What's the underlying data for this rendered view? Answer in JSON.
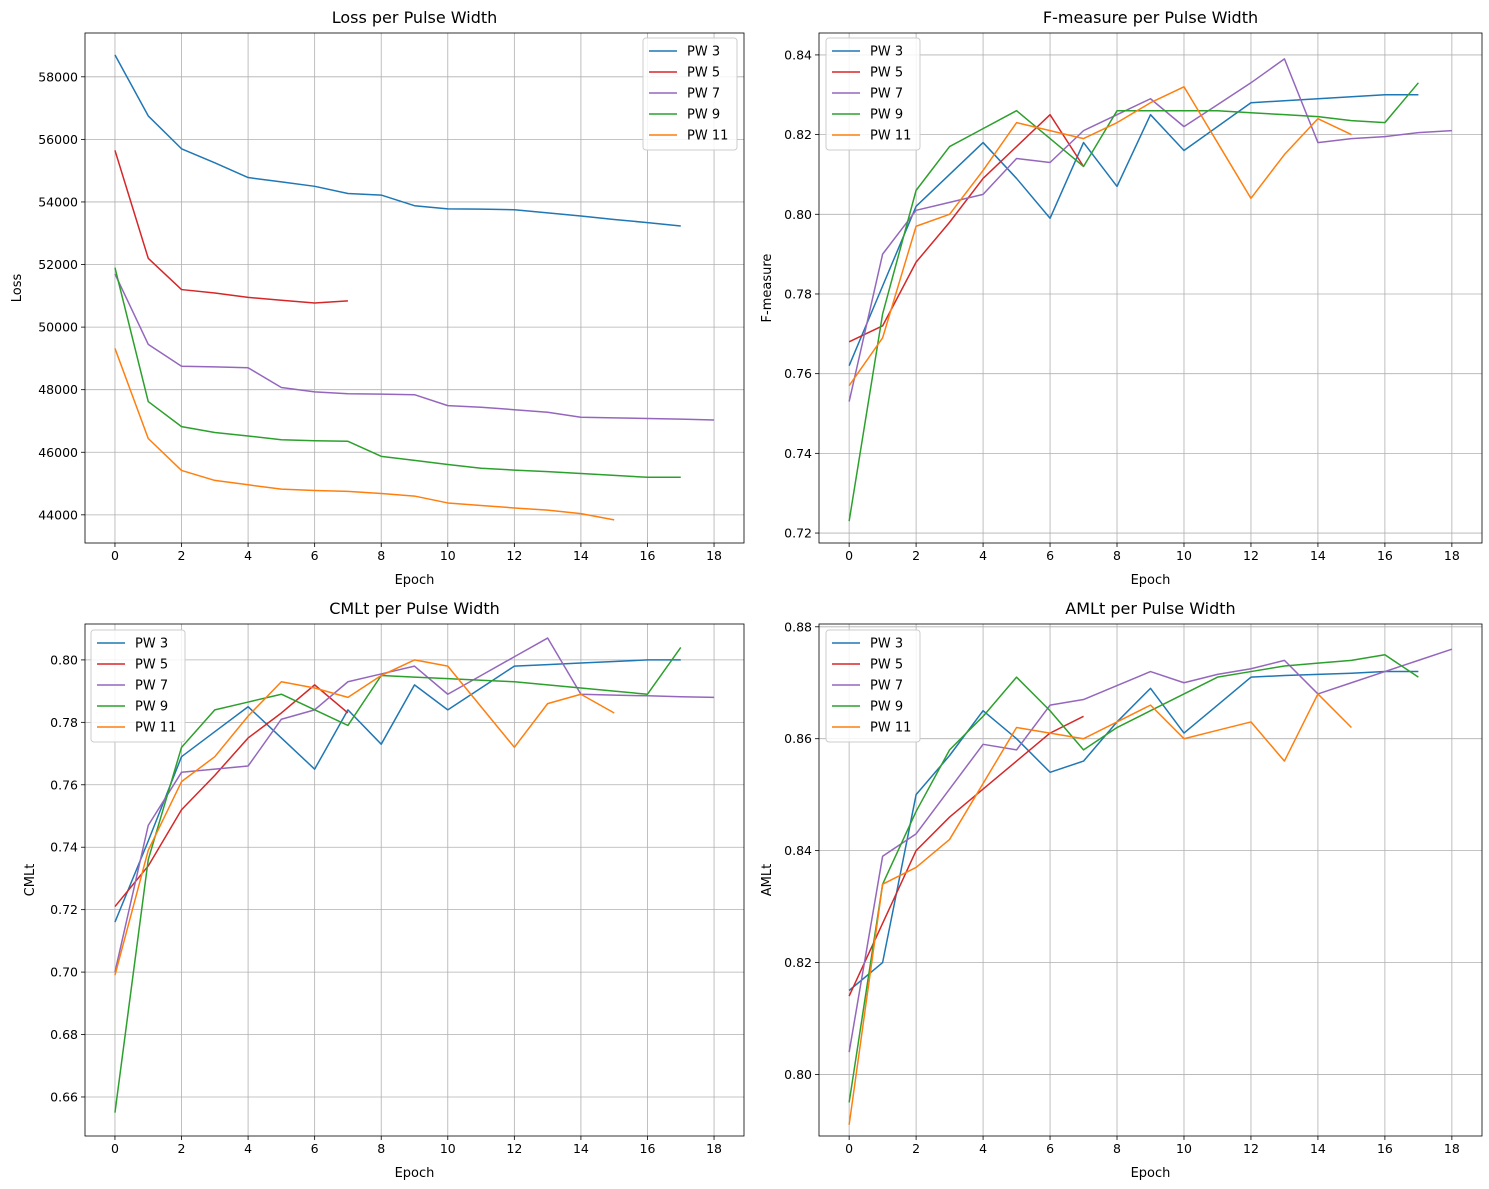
{
  "colors": {
    "PW 3": "#1f77b4",
    "PW 5": "#d62728",
    "PW 7": "#9467bd",
    "PW 9": "#2ca02c",
    "PW 11": "#ff7f0e"
  },
  "chart_data": [
    {
      "type": "line",
      "title": "Loss per Pulse Width",
      "xlabel": "Epoch",
      "ylabel": "Loss",
      "xlim": [
        -0.9,
        18.9
      ],
      "ylim": [
        43100,
        59400
      ],
      "xticks": [
        0,
        2,
        4,
        6,
        8,
        10,
        12,
        14,
        16,
        18
      ],
      "yticks": [
        44000,
        46000,
        48000,
        50000,
        52000,
        54000,
        56000,
        58000
      ],
      "grid": true,
      "legend": "top-right",
      "series": [
        {
          "name": "PW 3",
          "x": [
            0,
            1,
            2,
            3,
            4,
            5,
            6,
            7,
            8,
            9,
            10,
            11,
            12,
            13,
            14,
            15,
            16,
            17
          ],
          "values": [
            58700,
            56750,
            55700,
            55250,
            54780,
            54640,
            54500,
            54270,
            54220,
            53880,
            53780,
            53770,
            53750,
            53650,
            53550,
            53440,
            53340,
            53230
          ]
        },
        {
          "name": "PW 5",
          "x": [
            0,
            1,
            2,
            3,
            4,
            5,
            6,
            7
          ],
          "values": [
            55650,
            52200,
            51200,
            51090,
            50950,
            50860,
            50770,
            50840
          ]
        },
        {
          "name": "PW 7",
          "x": [
            0,
            1,
            2,
            3,
            4,
            5,
            6,
            7,
            8,
            9,
            10,
            11,
            12,
            13,
            14,
            15,
            16,
            17,
            18
          ],
          "values": [
            51700,
            49450,
            48750,
            48730,
            48700,
            48070,
            47930,
            47870,
            47860,
            47840,
            47490,
            47440,
            47360,
            47280,
            47120,
            47100,
            47080,
            47060,
            47030
          ]
        },
        {
          "name": "PW 9",
          "x": [
            0,
            1,
            2,
            3,
            4,
            5,
            6,
            7,
            8,
            9,
            10,
            11,
            12,
            13,
            14,
            15,
            16,
            17
          ],
          "values": [
            51900,
            47620,
            46820,
            46630,
            46520,
            46400,
            46370,
            46350,
            45870,
            45740,
            45610,
            45490,
            45430,
            45380,
            45320,
            45260,
            45200,
            45200
          ]
        },
        {
          "name": "PW 11",
          "x": [
            0,
            1,
            2,
            3,
            4,
            5,
            6,
            7,
            8,
            9,
            10,
            11,
            12,
            13,
            14,
            15
          ],
          "values": [
            49320,
            46440,
            45420,
            45100,
            44960,
            44820,
            44780,
            44750,
            44680,
            44600,
            44380,
            44300,
            44220,
            44150,
            44040,
            43840
          ]
        }
      ]
    },
    {
      "type": "line",
      "title": "F-measure per Pulse Width",
      "xlabel": "Epoch",
      "ylabel": "F-measure",
      "xlim": [
        -0.9,
        18.9
      ],
      "ylim": [
        0.7175,
        0.8455
      ],
      "xticks": [
        0,
        2,
        4,
        6,
        8,
        10,
        12,
        14,
        16,
        18
      ],
      "yticks": [
        0.72,
        0.74,
        0.76,
        0.78,
        0.8,
        0.82,
        0.84
      ],
      "ytick_labels": [
        "0.72",
        "0.74",
        "0.76",
        "0.78",
        "0.80",
        "0.82",
        "0.84"
      ],
      "grid": true,
      "legend": "top-left",
      "series": [
        {
          "name": "PW 3",
          "x": [
            0,
            1,
            2,
            3,
            4,
            5,
            6,
            7,
            8,
            9,
            10,
            11,
            12,
            13,
            14,
            15,
            16,
            17
          ],
          "values": [
            0.762,
            0.782,
            0.802,
            0.81,
            0.818,
            0.809,
            0.799,
            0.818,
            0.807,
            0.825,
            0.816,
            0.822,
            0.828,
            0.8285,
            0.829,
            0.8295,
            0.83,
            0.83
          ]
        },
        {
          "name": "PW 5",
          "x": [
            0,
            1,
            2,
            3,
            4,
            5,
            6,
            7
          ],
          "values": [
            0.768,
            0.772,
            0.788,
            0.798,
            0.809,
            0.817,
            0.825,
            0.812
          ]
        },
        {
          "name": "PW 7",
          "x": [
            0,
            1,
            2,
            3,
            4,
            5,
            6,
            7,
            8,
            9,
            10,
            11,
            12,
            13,
            14,
            15,
            16,
            17,
            18
          ],
          "values": [
            0.753,
            0.79,
            0.801,
            0.803,
            0.805,
            0.814,
            0.813,
            0.821,
            0.825,
            0.829,
            0.822,
            0.8275,
            0.833,
            0.839,
            0.818,
            0.819,
            0.8195,
            0.8205,
            0.821
          ]
        },
        {
          "name": "PW 9",
          "x": [
            0,
            1,
            2,
            3,
            4,
            5,
            6,
            7,
            8,
            9,
            10,
            11,
            12,
            13,
            14,
            15,
            16,
            17
          ],
          "values": [
            0.723,
            0.775,
            0.806,
            0.817,
            0.8215,
            0.826,
            0.819,
            0.812,
            0.826,
            0.826,
            0.826,
            0.826,
            0.8255,
            0.825,
            0.8245,
            0.8235,
            0.823,
            0.833
          ]
        },
        {
          "name": "PW 11",
          "x": [
            0,
            1,
            2,
            3,
            4,
            5,
            6,
            7,
            8,
            9,
            10,
            11,
            12,
            13,
            14,
            15
          ],
          "values": [
            0.757,
            0.769,
            0.797,
            0.8,
            0.811,
            0.823,
            0.821,
            0.819,
            0.823,
            0.828,
            0.832,
            0.818,
            0.804,
            0.815,
            0.824,
            0.82
          ]
        }
      ]
    },
    {
      "type": "line",
      "title": "CMLt per Pulse Width",
      "xlabel": "Epoch",
      "ylabel": "CMLt",
      "xlim": [
        -0.9,
        18.9
      ],
      "ylim": [
        0.6475,
        0.8115
      ],
      "xticks": [
        0,
        2,
        4,
        6,
        8,
        10,
        12,
        14,
        16,
        18
      ],
      "yticks": [
        0.66,
        0.68,
        0.7,
        0.72,
        0.74,
        0.76,
        0.78,
        0.8
      ],
      "ytick_labels": [
        "0.66",
        "0.68",
        "0.70",
        "0.72",
        "0.74",
        "0.76",
        "0.78",
        "0.80"
      ],
      "grid": true,
      "legend": "top-left",
      "series": [
        {
          "name": "PW 3",
          "x": [
            0,
            1,
            2,
            3,
            4,
            5,
            6,
            7,
            8,
            9,
            10,
            11,
            12,
            13,
            14,
            15,
            16,
            17
          ],
          "values": [
            0.716,
            0.742,
            0.769,
            0.777,
            0.785,
            0.775,
            0.765,
            0.784,
            0.773,
            0.792,
            0.784,
            0.791,
            0.798,
            0.7985,
            0.799,
            0.7995,
            0.8,
            0.8
          ]
        },
        {
          "name": "PW 5",
          "x": [
            0,
            1,
            2,
            3,
            4,
            5,
            6,
            7
          ],
          "values": [
            0.721,
            0.734,
            0.752,
            0.763,
            0.775,
            0.783,
            0.792,
            0.783
          ]
        },
        {
          "name": "PW 7",
          "x": [
            0,
            1,
            2,
            3,
            4,
            5,
            6,
            7,
            8,
            9,
            10,
            11,
            12,
            13,
            14,
            15,
            16,
            17,
            18
          ],
          "values": [
            0.7,
            0.747,
            0.764,
            0.765,
            0.766,
            0.781,
            0.784,
            0.793,
            0.7955,
            0.798,
            0.789,
            0.795,
            0.801,
            0.807,
            0.789,
            0.7887,
            0.7885,
            0.7882,
            0.788
          ]
        },
        {
          "name": "PW 9",
          "x": [
            0,
            1,
            2,
            3,
            4,
            5,
            6,
            7,
            8,
            9,
            10,
            11,
            12,
            13,
            14,
            15,
            16,
            17
          ],
          "values": [
            0.655,
            0.736,
            0.772,
            0.784,
            0.7865,
            0.789,
            0.784,
            0.779,
            0.795,
            0.7945,
            0.794,
            0.7935,
            0.793,
            0.792,
            0.791,
            0.79,
            0.789,
            0.804
          ]
        },
        {
          "name": "PW 11",
          "x": [
            0,
            1,
            2,
            3,
            4,
            5,
            6,
            7,
            8,
            9,
            10,
            11,
            12,
            13,
            14,
            15
          ],
          "values": [
            0.699,
            0.739,
            0.761,
            0.769,
            0.782,
            0.793,
            0.791,
            0.788,
            0.795,
            0.8,
            0.798,
            0.785,
            0.772,
            0.786,
            0.789,
            0.783
          ]
        }
      ]
    },
    {
      "type": "line",
      "title": "AMLt per Pulse Width",
      "xlabel": "Epoch",
      "ylabel": "AMLt",
      "xlim": [
        -0.9,
        18.9
      ],
      "ylim": [
        0.789,
        0.8805
      ],
      "xticks": [
        0,
        2,
        4,
        6,
        8,
        10,
        12,
        14,
        16,
        18
      ],
      "yticks": [
        0.8,
        0.82,
        0.84,
        0.86,
        0.88
      ],
      "ytick_labels": [
        "0.80",
        "0.82",
        "0.84",
        "0.86",
        "0.88"
      ],
      "grid": true,
      "legend": "top-left",
      "series": [
        {
          "name": "PW 3",
          "x": [
            0,
            1,
            2,
            3,
            4,
            5,
            6,
            7,
            8,
            9,
            10,
            11,
            12,
            13,
            14,
            15,
            16,
            17
          ],
          "values": [
            0.815,
            0.82,
            0.85,
            0.857,
            0.865,
            0.86,
            0.854,
            0.856,
            0.863,
            0.869,
            0.861,
            0.866,
            0.871,
            0.8713,
            0.8715,
            0.8717,
            0.872,
            0.872
          ]
        },
        {
          "name": "PW 5",
          "x": [
            0,
            1,
            2,
            3,
            4,
            5,
            6,
            7
          ],
          "values": [
            0.814,
            0.827,
            0.84,
            0.846,
            0.851,
            0.856,
            0.861,
            0.864
          ]
        },
        {
          "name": "PW 7",
          "x": [
            0,
            1,
            2,
            3,
            4,
            5,
            6,
            7,
            8,
            9,
            10,
            11,
            12,
            13,
            14,
            15,
            16,
            17,
            18
          ],
          "values": [
            0.804,
            0.839,
            0.843,
            0.851,
            0.859,
            0.858,
            0.866,
            0.867,
            0.8695,
            0.872,
            0.87,
            0.8715,
            0.8725,
            0.874,
            0.868,
            0.87,
            0.872,
            0.874,
            0.876
          ]
        },
        {
          "name": "PW 9",
          "x": [
            0,
            1,
            2,
            3,
            4,
            5,
            6,
            7,
            8,
            9,
            10,
            11,
            12,
            13,
            14,
            15,
            16,
            17
          ],
          "values": [
            0.795,
            0.834,
            0.847,
            0.858,
            0.864,
            0.871,
            0.865,
            0.858,
            0.862,
            0.865,
            0.868,
            0.871,
            0.872,
            0.873,
            0.8735,
            0.874,
            0.875,
            0.871
          ]
        },
        {
          "name": "PW 11",
          "x": [
            0,
            1,
            2,
            3,
            4,
            5,
            6,
            7,
            8,
            9,
            10,
            11,
            12,
            13,
            14,
            15
          ],
          "values": [
            0.791,
            0.834,
            0.837,
            0.842,
            0.852,
            0.862,
            0.861,
            0.86,
            0.863,
            0.866,
            0.86,
            0.8615,
            0.863,
            0.856,
            0.868,
            0.862
          ]
        }
      ]
    }
  ]
}
